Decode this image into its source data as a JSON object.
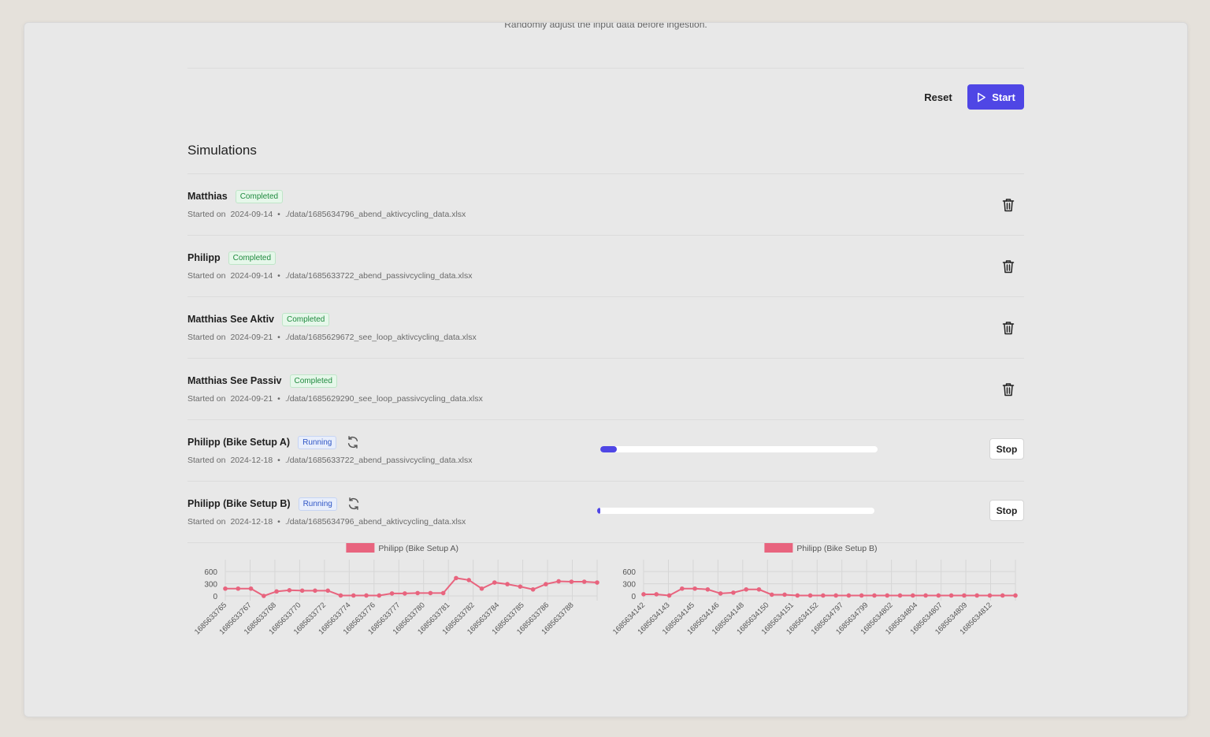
{
  "header": {
    "truncated_description": "Randomly adjust the input data before ingestion."
  },
  "actions": {
    "reset_label": "Reset",
    "start_label": "Start",
    "start_icon": "play-icon"
  },
  "simulations": {
    "title": "Simulations",
    "started_prefix": "Started on",
    "items": [
      {
        "name": "Matthias",
        "status": "Completed",
        "date": "2024-09-14",
        "file": "./data/1685634796_abend_aktivcycling_data.xlsx"
      },
      {
        "name": "Philipp",
        "status": "Completed",
        "date": "2024-09-14",
        "file": "./data/1685633722_abend_passivcycling_data.xlsx"
      },
      {
        "name": "Matthias See Aktiv",
        "status": "Completed",
        "date": "2024-09-21",
        "file": "./data/1685629672_see_loop_aktivcycling_data.xlsx"
      },
      {
        "name": "Matthias See Passiv",
        "status": "Completed",
        "date": "2024-09-21",
        "file": "./data/1685629290_see_loop_passivcycling_data.xlsx"
      },
      {
        "name": "Philipp (Bike Setup A)",
        "status": "Running",
        "date": "2024-12-18",
        "file": "./data/1685633722_abend_passivcycling_data.xlsx",
        "progress_fraction": 0.06,
        "stop_label": "Stop"
      },
      {
        "name": "Philipp (Bike Setup B)",
        "status": "Running",
        "date": "2024-12-18",
        "file": "./data/1685634796_abend_aktivcycling_data.xlsx",
        "progress_fraction": 0.01,
        "stop_label": "Stop"
      }
    ]
  },
  "colors": {
    "accent": "#4f46e5",
    "series": "#e8647e",
    "completed": "#1f8a3e",
    "running": "#2f55c5"
  },
  "chart_data": [
    {
      "type": "line",
      "legend": "Philipp (Bike Setup A)",
      "series": [
        {
          "name": "Philipp (Bike Setup A)",
          "values": [
            180,
            180,
            180,
            0,
            110,
            140,
            130,
            130,
            130,
            10,
            10,
            10,
            10,
            60,
            60,
            70,
            70,
            70,
            440,
            390,
            180,
            330,
            290,
            230,
            160,
            290,
            360,
            350,
            350,
            330
          ]
        }
      ],
      "tick_labels": [
        "1685633765",
        "1685633767",
        "1685633768",
        "1685633770",
        "1685633772",
        "1685633774",
        "1685633776",
        "1685633777",
        "1685633780",
        "1685633781",
        "1685633782",
        "1685633784",
        "1685633785",
        "1685633786",
        "1685633788"
      ],
      "yticks": [
        600,
        300,
        0
      ],
      "ylim": [
        0,
        700
      ]
    },
    {
      "type": "line",
      "legend": "Philipp (Bike Setup B)",
      "series": [
        {
          "name": "Philipp (Bike Setup B)",
          "values": [
            40,
            40,
            10,
            180,
            180,
            160,
            60,
            80,
            160,
            160,
            30,
            30,
            10,
            10,
            10,
            10,
            10,
            10,
            10,
            10,
            10,
            10,
            10,
            10,
            10,
            10,
            10,
            10,
            10,
            10
          ]
        }
      ],
      "tick_labels": [
        "1685634142",
        "1685634143",
        "1685634145",
        "1685634146",
        "1685634148",
        "1685634150",
        "1685634151",
        "1685634152",
        "1685634797",
        "1685634799",
        "1685634802",
        "1685634804",
        "1685634807",
        "1685634809",
        "1685634812"
      ],
      "yticks": [
        600,
        300,
        0
      ],
      "ylim": [
        0,
        700
      ]
    }
  ]
}
